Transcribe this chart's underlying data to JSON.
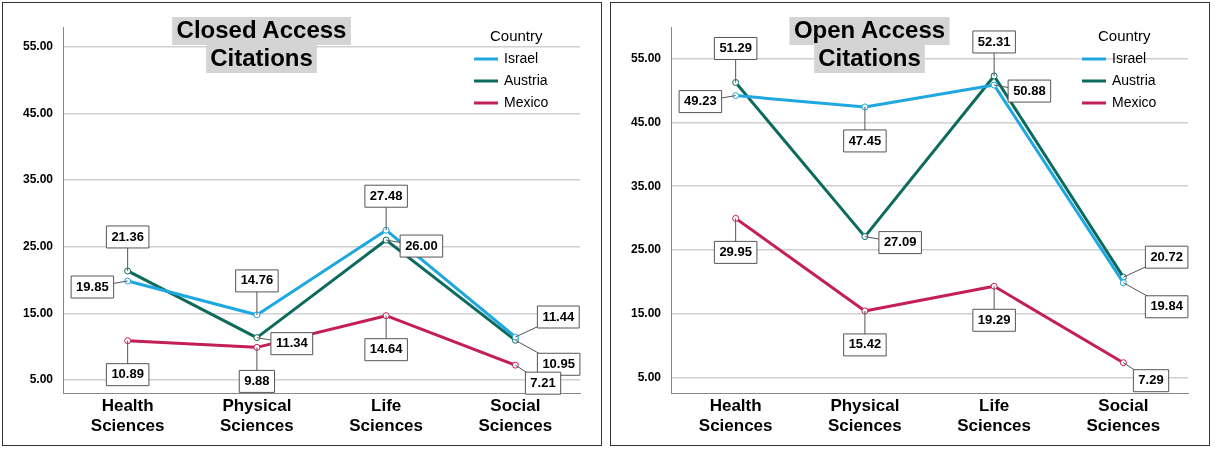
{
  "chart_data": [
    {
      "type": "line",
      "title": "Closed Access\nCitations",
      "categories": [
        "Health\nSciences",
        "Physical\nSciences",
        "Life\nSciences",
        "Social\nSciences"
      ],
      "series": [
        {
          "name": "Israel",
          "color": "#1fa8e0",
          "values": [
            19.85,
            14.76,
            27.48,
            11.44
          ],
          "value_labels": [
            "19.85",
            "14.76",
            "27.48",
            "11.44"
          ]
        },
        {
          "name": "Austria",
          "color": "#0d6b5e",
          "values": [
            21.36,
            11.34,
            26.0,
            10.95
          ],
          "value_labels": [
            "21.36",
            "11.34",
            "26.00",
            "10.95"
          ]
        },
        {
          "name": "Mexico",
          "color": "#c41e5a",
          "values": [
            10.89,
            9.88,
            14.64,
            7.21
          ],
          "value_labels": [
            "10.89",
            "9.88",
            "14.64",
            "7.21"
          ]
        }
      ],
      "ylim": [
        3,
        58
      ],
      "yticks": [
        {
          "value": 5,
          "label": "5.00"
        },
        {
          "value": 15,
          "label": "15.00"
        },
        {
          "value": 25,
          "label": "25.00"
        },
        {
          "value": 35,
          "label": "35.00"
        },
        {
          "value": 45,
          "label": "45.00"
        },
        {
          "value": 55,
          "label": "55.00"
        }
      ],
      "grid": "y",
      "legend": "top right",
      "legend_title": "Country",
      "marker": "circle"
    },
    {
      "type": "line",
      "title": "Open Access\nCitations",
      "categories": [
        "Health\nSciences",
        "Physical\nSciences",
        "Life\nSciences",
        "Social\nSciences"
      ],
      "series": [
        {
          "name": "Israel",
          "color": "#1fa8e0",
          "values": [
            49.23,
            47.45,
            50.88,
            19.84
          ],
          "value_labels": [
            "49.23",
            "47.45",
            "50.88",
            "19.84"
          ]
        },
        {
          "name": "Austria",
          "color": "#0d6b5e",
          "values": [
            51.29,
            27.09,
            52.31,
            20.72
          ],
          "value_labels": [
            "51.29",
            "27.09",
            "52.31",
            "20.72"
          ]
        },
        {
          "name": "Mexico",
          "color": "#c41e5a",
          "values": [
            29.95,
            15.42,
            19.29,
            7.29
          ],
          "value_labels": [
            "29.95",
            "15.42",
            "19.29",
            "7.29"
          ]
        }
      ],
      "ylim": [
        2.5,
        60
      ],
      "yticks": [
        {
          "value": 5,
          "label": "5.00"
        },
        {
          "value": 15,
          "label": "15.00"
        },
        {
          "value": 25,
          "label": "25.00"
        },
        {
          "value": 35,
          "label": "35.00"
        },
        {
          "value": 45,
          "label": "45.00"
        },
        {
          "value": 55,
          "label": "55.00"
        }
      ],
      "grid": "y",
      "legend": "top right",
      "legend_title": "Country",
      "marker": "circle"
    }
  ]
}
